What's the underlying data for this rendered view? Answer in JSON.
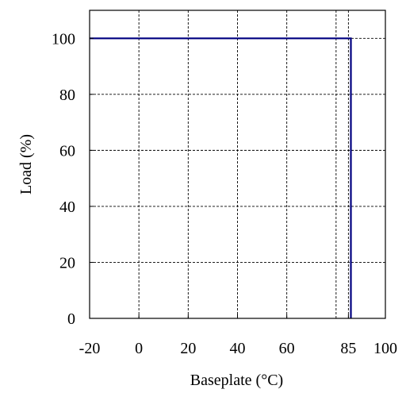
{
  "chart_data": {
    "type": "line",
    "title": "",
    "xlabel": "Baseplate (°C)",
    "ylabel": "Load (%)",
    "xlim": [
      -20,
      100
    ],
    "ylim": [
      0,
      110
    ],
    "x_ticks": [
      -20,
      0,
      20,
      40,
      60,
      85,
      100
    ],
    "x_tick_labels": [
      "-20",
      "0",
      "20",
      "40",
      "60",
      "85",
      "100"
    ],
    "y_ticks": [
      0,
      20,
      40,
      60,
      80,
      100
    ],
    "y_tick_labels": [
      "0",
      "20",
      "40",
      "60",
      "80",
      "100"
    ],
    "x_gridlines": [
      0,
      20,
      40,
      60,
      80,
      85
    ],
    "y_gridlines": [
      20,
      40,
      60,
      80,
      100
    ],
    "grid": true,
    "series": [
      {
        "color": "#000080",
        "points": [
          {
            "x": -20,
            "y": 100
          },
          {
            "x": 86,
            "y": 100
          },
          {
            "x": 86,
            "y": 0
          }
        ]
      }
    ]
  }
}
